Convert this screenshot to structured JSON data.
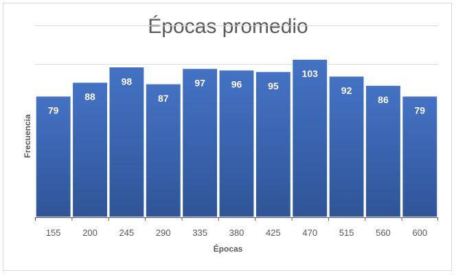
{
  "chart_data": {
    "type": "bar",
    "title": "Épocas promedio",
    "xlabel": "Épocas",
    "ylabel": "Frecuencia",
    "categories": [
      "155",
      "200",
      "245",
      "290",
      "335",
      "380",
      "425",
      "470",
      "515",
      "560",
      "600"
    ],
    "values": [
      79,
      88,
      98,
      87,
      97,
      96,
      95,
      103,
      92,
      86,
      79
    ],
    "ylim": [
      0,
      125
    ],
    "grid": true,
    "legend": "none",
    "bar_color": "#4472c4",
    "bar_color_dark": "#2f5597",
    "grid_color": "#d9d9d9",
    "axis_color": "#595959"
  }
}
